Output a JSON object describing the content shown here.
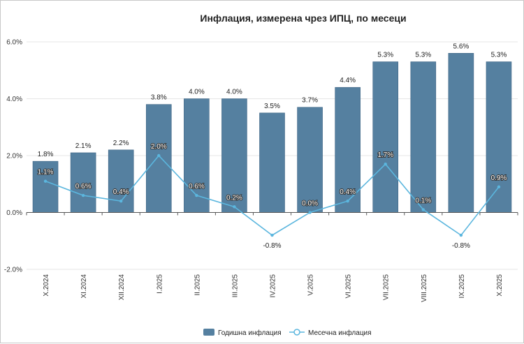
{
  "chart_data": {
    "type": "bar+line",
    "title": "Инфлация, измерена чрез ИПЦ, по месеци",
    "categories": [
      "X.2024",
      "XI.2024",
      "XII.2024",
      "I.2025",
      "II.2025",
      "III.2025",
      "IV.2025",
      "V.2025",
      "VI.2025",
      "VII.2025",
      "VIII.2025",
      "IX.2025",
      "X.2025"
    ],
    "y_ticks": [
      "6.0%",
      "4.0%",
      "2.0%",
      "0.0%",
      "-2.0%"
    ],
    "y_tick_values": [
      6,
      4,
      2,
      0,
      -2
    ],
    "ylim": [
      -2,
      6
    ],
    "series": [
      {
        "name": "Годишна инфлация",
        "kind": "bar",
        "color": "#5580a0",
        "values": [
          1.8,
          2.1,
          2.2,
          3.8,
          4.0,
          4.0,
          3.5,
          3.7,
          4.4,
          5.3,
          5.3,
          5.6,
          5.3
        ],
        "labels": [
          "1.8%",
          "2.1%",
          "2.2%",
          "3.8%",
          "4.0%",
          "4.0%",
          "3.5%",
          "3.7%",
          "4.4%",
          "5.3%",
          "5.3%",
          "5.6%",
          "5.3%"
        ]
      },
      {
        "name": "Месечна инфлация",
        "kind": "line",
        "color": "#5bb6de",
        "values": [
          1.1,
          0.6,
          0.4,
          2.0,
          0.6,
          0.2,
          -0.8,
          0.0,
          0.4,
          1.7,
          0.1,
          -0.8,
          0.9
        ],
        "labels": [
          "1.1%",
          "0.6%",
          "0.4%",
          "2.0%",
          "0.6%",
          "0.2%",
          "-0.8%",
          "0.0%",
          "0.4%",
          "1.7%",
          "0.1%",
          "-0.8%",
          "0.9%"
        ]
      }
    ],
    "legend": [
      "Годишна инфлация",
      "Месечна инфлация"
    ],
    "legend_position": "bottom"
  }
}
